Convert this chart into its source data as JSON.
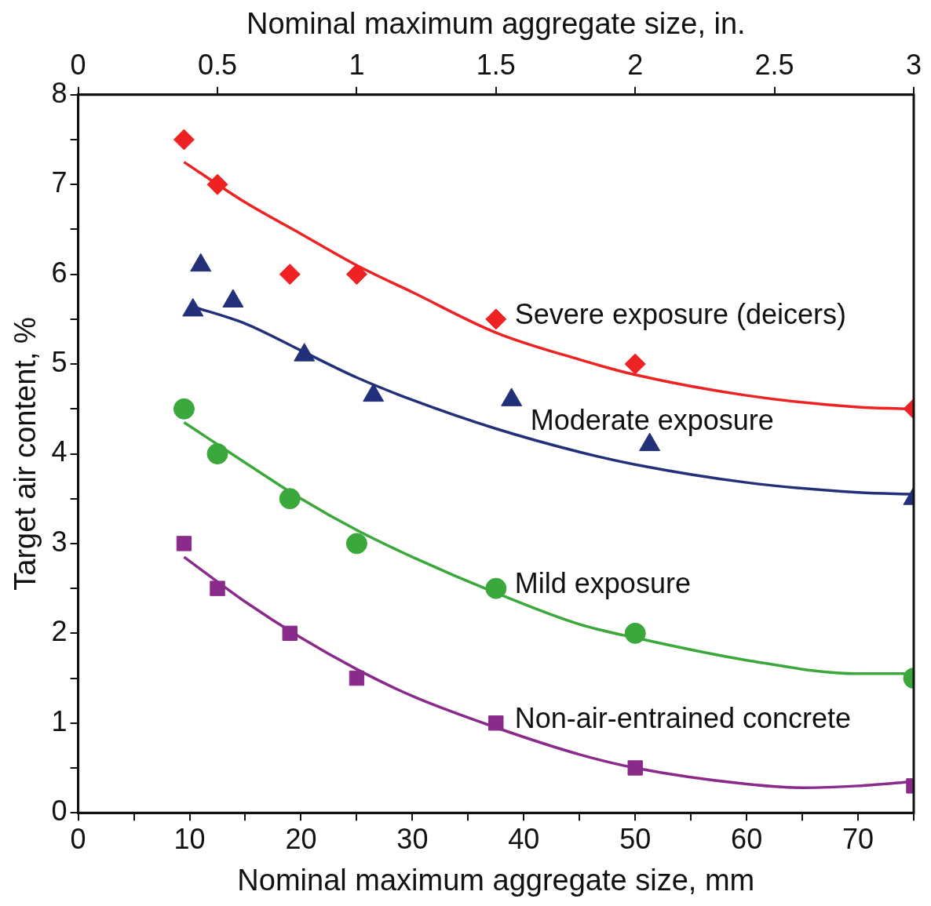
{
  "chart_data": {
    "type": "scatter",
    "xlabel": "Nominal maximum aggregate size, mm",
    "x2label": "Nominal maximum aggregate size, in.",
    "ylabel": "Target air content, %",
    "xlim": [
      0,
      75
    ],
    "xticks": [
      0,
      {
        "value": 5,
        "label": null
      },
      10,
      {
        "value": 15,
        "label": null
      },
      20,
      {
        "value": 25,
        "label": null
      },
      30,
      {
        "value": 35,
        "label": null
      },
      40,
      {
        "value": 45,
        "label": null
      },
      50,
      {
        "value": 55,
        "label": null
      },
      60,
      {
        "value": 65,
        "label": null
      },
      70,
      {
        "value": 75,
        "label": null
      }
    ],
    "x2lim": [
      0,
      3
    ],
    "x2ticks": [
      0,
      0.5,
      1,
      1.5,
      2,
      2.5,
      3
    ],
    "ylim": [
      0,
      8
    ],
    "yticks": [
      0,
      {
        "value": 0.5,
        "label": null
      },
      1,
      {
        "value": 1.5,
        "label": null
      },
      2,
      {
        "value": 2.5,
        "label": null
      },
      3,
      {
        "value": 3.5,
        "label": null
      },
      4,
      {
        "value": 4.5,
        "label": null
      },
      5,
      {
        "value": 5.5,
        "label": null
      },
      6,
      {
        "value": 6.5,
        "label": null
      },
      7,
      {
        "value": 7.5,
        "label": null
      },
      8
    ],
    "series": [
      {
        "type": "scatter",
        "name": "Severe exposure (deicers)",
        "marker": "diamond",
        "color": "#ee2222",
        "x": [
          9.5,
          12.5,
          19,
          25,
          37.5,
          50,
          75
        ],
        "values": [
          7.5,
          7,
          6,
          6,
          5.5,
          5,
          4.5
        ]
      },
      {
        "type": "scatter",
        "name": "Moderate exposure",
        "marker": "triangle",
        "color": "#22307a",
        "x": [
          10.3,
          11,
          13.9,
          20.3,
          26.5,
          38.9,
          51.3,
          75
        ],
        "values": [
          5.6,
          6.1,
          5.7,
          5.1,
          4.65,
          4.6,
          4.1,
          3.5
        ]
      },
      {
        "type": "scatter",
        "name": "Mild exposure",
        "marker": "circle",
        "color": "#3aa83a",
        "x": [
          9.5,
          12.5,
          19,
          25,
          37.5,
          50,
          75
        ],
        "values": [
          4.5,
          4,
          3.5,
          3,
          2.5,
          2,
          1.5
        ]
      },
      {
        "type": "scatter",
        "name": "Non-air-entrained concrete",
        "marker": "square",
        "color": "#8a2a8a",
        "x": [
          9.5,
          12.5,
          19,
          25,
          37.5,
          50,
          75
        ],
        "values": [
          3,
          2.5,
          2,
          1.5,
          1,
          0.5,
          0.3
        ]
      },
      {
        "type": "line",
        "color": "#ee2222",
        "x": [
          9.5,
          15,
          20,
          25,
          30,
          37.5,
          45,
          50,
          60,
          70,
          75
        ],
        "values": [
          7.25,
          6.8,
          6.45,
          6.1,
          5.8,
          5.35,
          5.05,
          4.88,
          4.65,
          4.52,
          4.5
        ]
      },
      {
        "type": "line",
        "color": "#22307a",
        "x": [
          10,
          15,
          20,
          25,
          30,
          37.5,
          45,
          50,
          60,
          70,
          75
        ],
        "values": [
          5.65,
          5.45,
          5.15,
          4.85,
          4.6,
          4.28,
          4.02,
          3.88,
          3.68,
          3.57,
          3.55
        ]
      },
      {
        "type": "line",
        "color": "#3aa83a",
        "x": [
          9.5,
          15,
          20,
          25,
          30,
          37.5,
          45,
          50,
          60,
          70,
          75
        ],
        "values": [
          4.35,
          3.9,
          3.5,
          3.15,
          2.85,
          2.45,
          2.1,
          1.95,
          1.7,
          1.55,
          1.55
        ]
      },
      {
        "type": "line",
        "color": "#8a2a8a",
        "x": [
          9.5,
          15,
          20,
          25,
          30,
          37.5,
          45,
          50,
          60,
          65,
          70,
          75
        ],
        "values": [
          2.85,
          2.35,
          1.95,
          1.6,
          1.3,
          0.95,
          0.65,
          0.5,
          0.32,
          0.28,
          0.3,
          0.35
        ]
      }
    ]
  }
}
